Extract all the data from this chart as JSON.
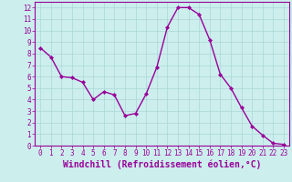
{
  "x": [
    0,
    1,
    2,
    3,
    4,
    5,
    6,
    7,
    8,
    9,
    10,
    11,
    12,
    13,
    14,
    15,
    16,
    17,
    18,
    19,
    20,
    21,
    22,
    23
  ],
  "y": [
    8.5,
    7.7,
    6.0,
    5.9,
    5.5,
    4.0,
    4.7,
    4.4,
    2.6,
    2.8,
    4.5,
    6.8,
    10.3,
    12.0,
    12.0,
    11.4,
    9.2,
    6.2,
    5.0,
    3.3,
    1.7,
    0.9,
    0.2,
    0.1
  ],
  "line_color": "#990099",
  "marker": "D",
  "markersize": 2.0,
  "linewidth": 1.0,
  "xlabel": "Windchill (Refroidissement éolien,°C)",
  "xlabel_fontsize": 7.0,
  "xlabel_color": "#990099",
  "ylabel": "",
  "xlim": [
    -0.5,
    23.5
  ],
  "ylim": [
    0,
    12.5
  ],
  "yticks": [
    0,
    1,
    2,
    3,
    4,
    5,
    6,
    7,
    8,
    9,
    10,
    11,
    12
  ],
  "xticks": [
    0,
    1,
    2,
    3,
    4,
    5,
    6,
    7,
    8,
    9,
    10,
    11,
    12,
    13,
    14,
    15,
    16,
    17,
    18,
    19,
    20,
    21,
    22,
    23
  ],
  "tick_fontsize": 5.5,
  "tick_color": "#990099",
  "grid_color": "#aad8d8",
  "background_color": "#cceeed",
  "spine_color": "#990099",
  "figure_bg": "#cceeed"
}
